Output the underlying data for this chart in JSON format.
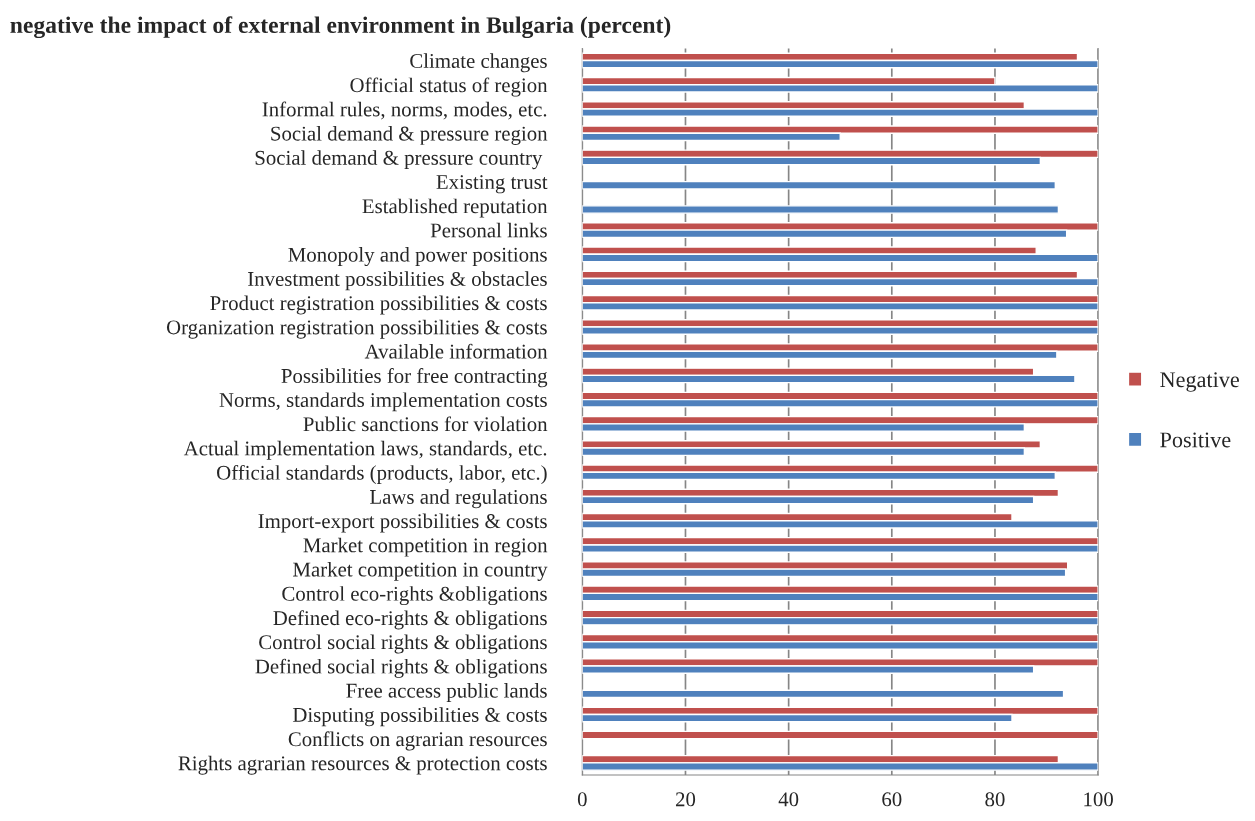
{
  "chart_data": {
    "type": "bar",
    "orientation": "horizontal",
    "title": "negative the impact of external environment in Bulgaria (percent)",
    "categories": [
      "Climate changes",
      "Official status of region",
      "Informal rules, norms, modes, etc.",
      "Social demand & pressure region",
      "Social demand & pressure country ",
      "Existing trust",
      "Established reputation",
      "Personal links",
      "Monopoly and power positions",
      "Investment possibilities & obstacles",
      "Product registration possibilities & costs",
      "Organization registration possibilities & costs",
      "Available information",
      "Possibilities for free contracting",
      "Norms, standards implementation costs",
      "Public sanctions for violation",
      "Actual implementation laws, standards, etc.",
      "Official standards (products, labor, etc.)",
      "Laws and regulations",
      "Import-export possibilities & costs",
      "Market competition in region",
      "Market competition in country",
      "Control eco-rights &obligations",
      "Defined eco-rights & obligations",
      "Control social rights & obligations",
      "Defined social rights & obligations",
      "Free access public lands",
      "Disputing possibilities & costs",
      "Conflicts on agrarian resources",
      "Rights agrarian resources & protection costs"
    ],
    "series": [
      {
        "name": "Negative",
        "color": "#c0504d",
        "values": [
          96,
          80,
          85.7,
          100,
          100,
          null,
          null,
          100,
          88,
          96,
          100,
          100,
          100,
          87.5,
          100,
          100,
          88.8,
          100,
          92.3,
          83.3,
          100,
          94.1,
          100,
          100,
          100,
          100,
          null,
          100,
          100,
          92.3
        ]
      },
      {
        "name": "Positive",
        "color": "#4f81bd",
        "values": [
          100,
          100,
          100,
          50,
          88.8,
          91.7,
          92.3,
          93.9,
          100,
          100,
          100,
          100,
          92,
          95.5,
          100,
          85.7,
          85.7,
          91.7,
          87.5,
          100,
          100,
          93.7,
          100,
          100,
          100,
          87.5,
          93.3,
          83.3,
          null,
          100
        ]
      }
    ],
    "xlim": [
      0,
      100
    ],
    "xticks": [
      0,
      20,
      40,
      60,
      80,
      100
    ],
    "grid": "x",
    "legend": "right"
  }
}
